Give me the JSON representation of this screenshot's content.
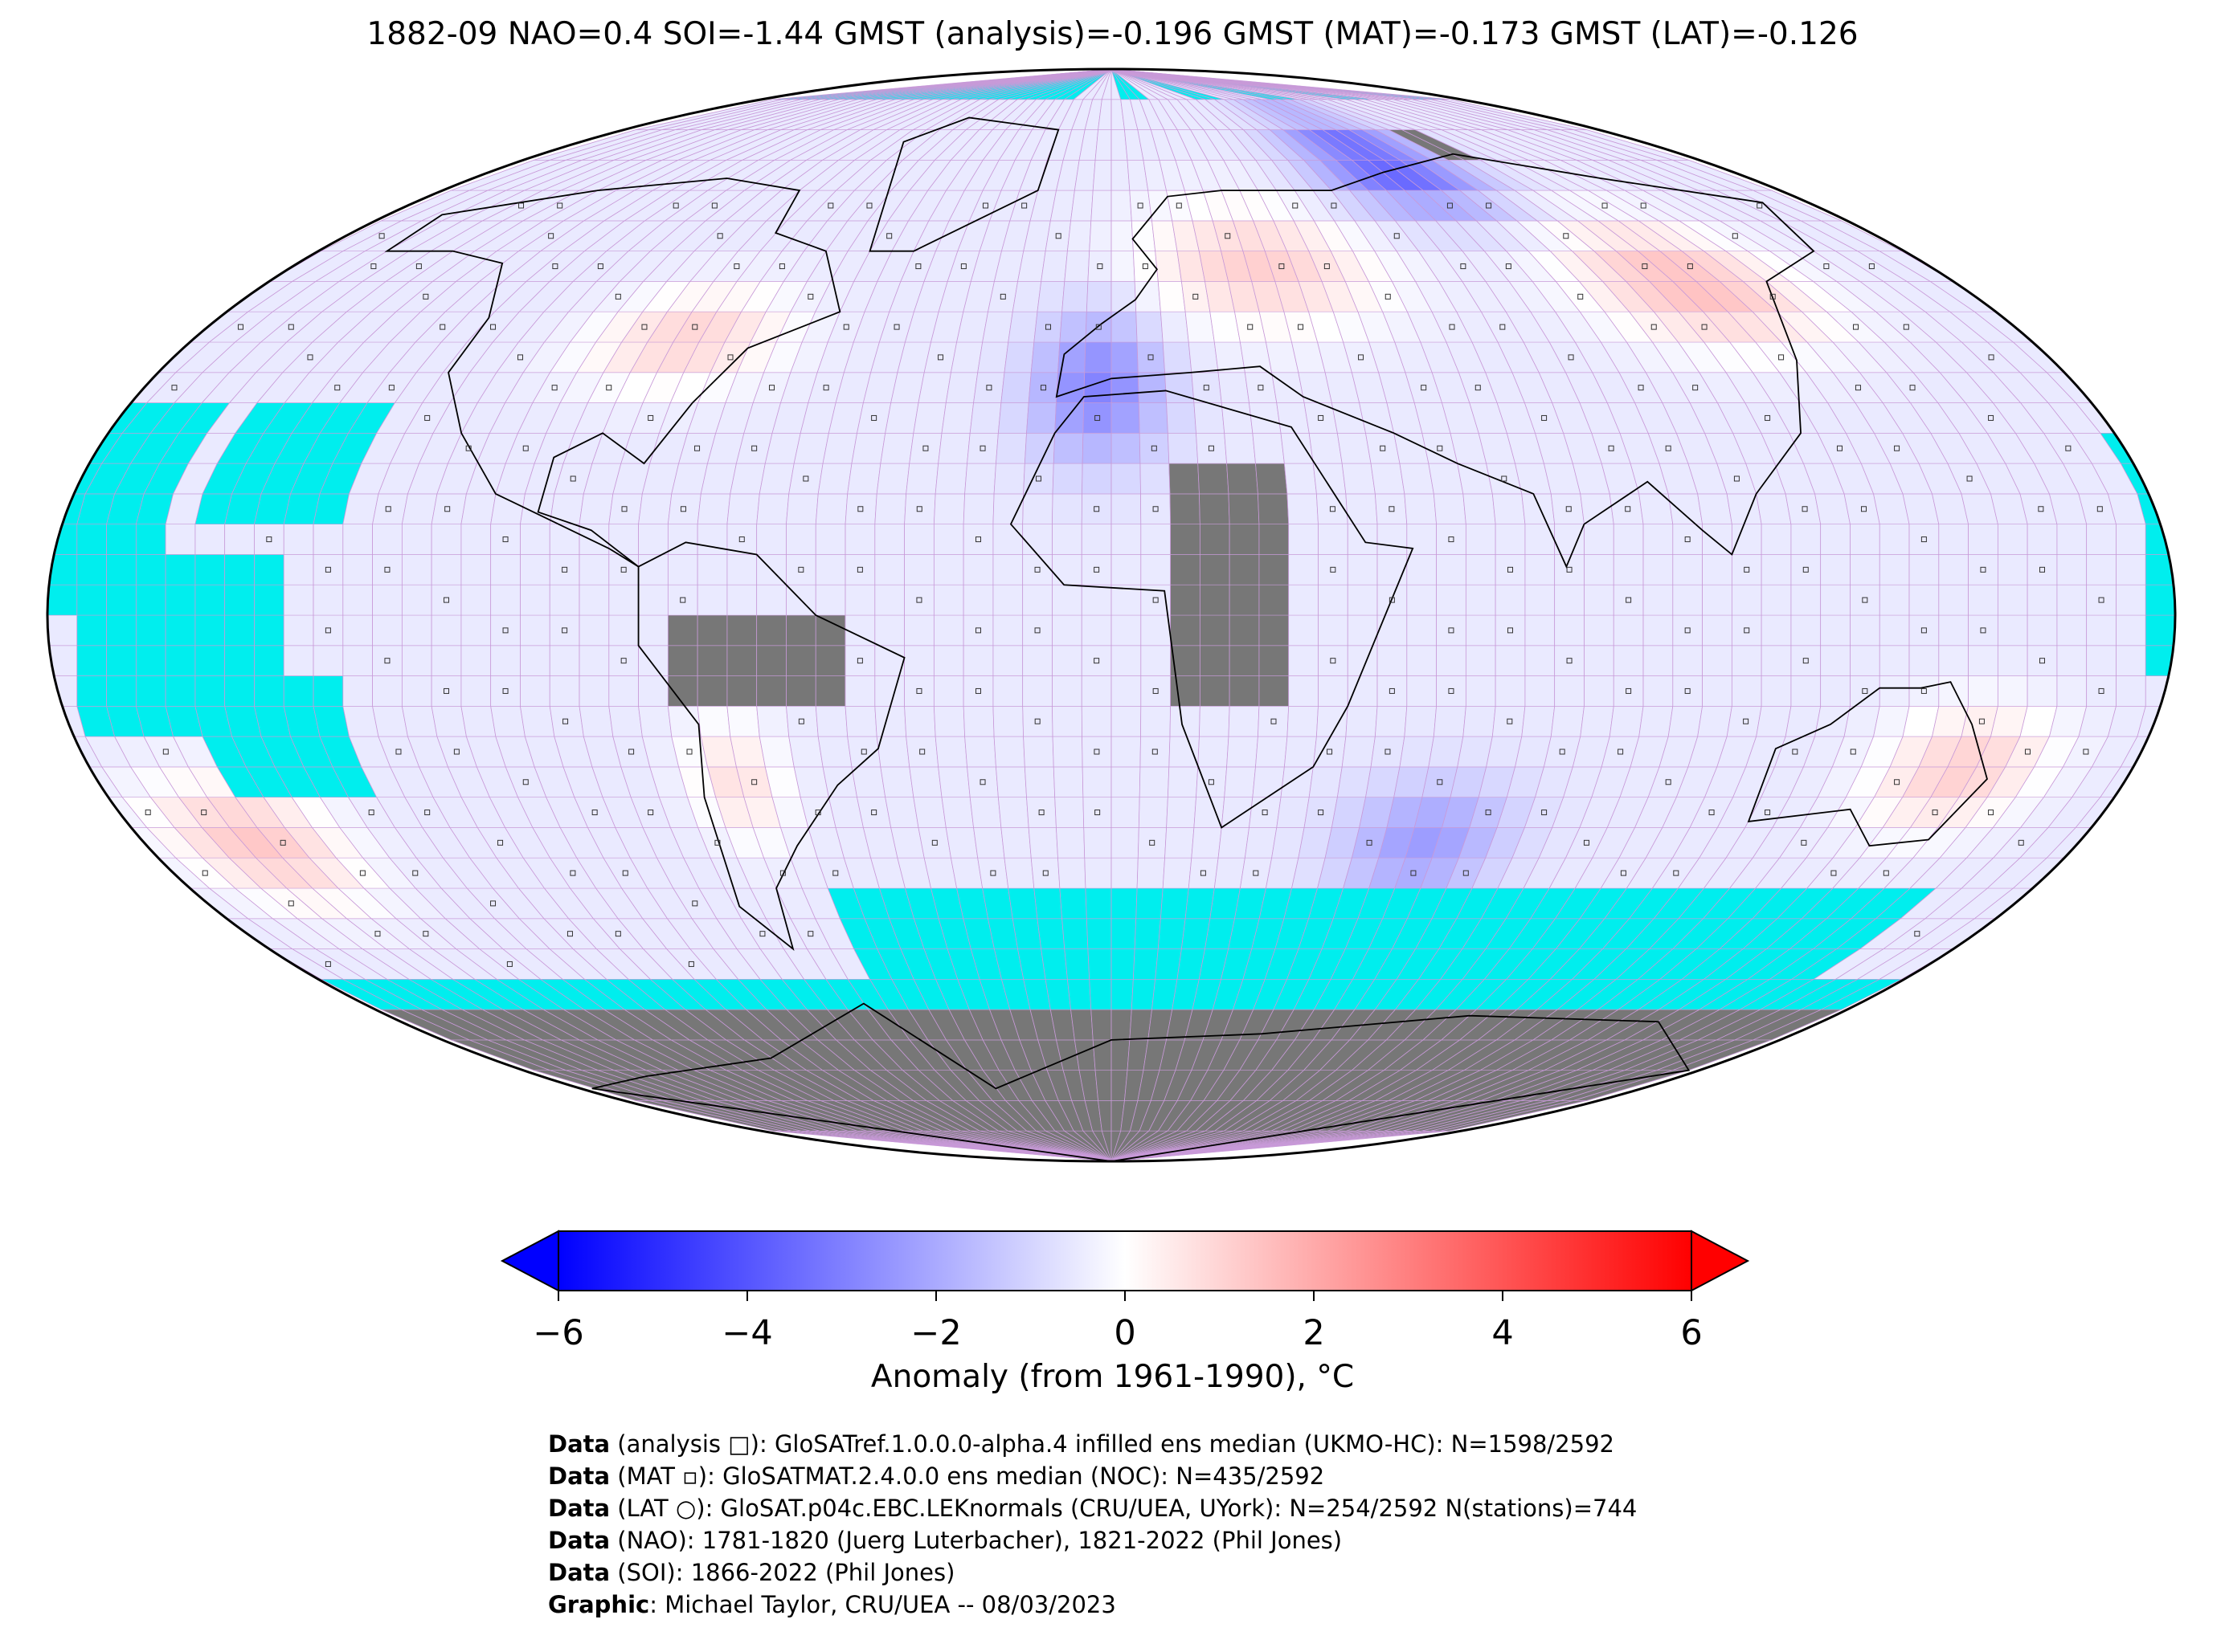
{
  "title": "1882-09 NAO=0.4 SOI=-1.44 GMST (analysis)=-0.196 GMST (MAT)=-0.173 GMST (LAT)=-0.126",
  "colors": {
    "missing": "#00eeee",
    "land_nodata": "#777777",
    "grid": "#c89ad8",
    "cold_end": "#0000ff",
    "warm_end": "#ff0000",
    "neutral": "#ffffff"
  },
  "colorbar": {
    "min": -6,
    "max": 6,
    "ticks": [
      "−6",
      "−4",
      "−2",
      "0",
      "2",
      "4",
      "6"
    ],
    "tick_values": [
      -6,
      -4,
      -2,
      0,
      2,
      4,
      6
    ],
    "label": "Anomaly (from 1961-1990), °C"
  },
  "credits": [
    {
      "bold": "Data",
      "text": " (analysis □): GloSATref.1.0.0.0-alpha.4 infilled ens median (UKMO-HC): N=1598/2592"
    },
    {
      "bold": "Data",
      "text": " (MAT ▫): GloSATMAT.2.4.0.0 ens median (NOC): N=435/2592"
    },
    {
      "bold": "Data",
      "text": " (LAT ○): GloSAT.p04c.EBC.LEKnormals (CRU/UEA, UYork): N=254/2592 N(stations)=744"
    },
    {
      "bold": "Data",
      "text": " (NAO): 1781-1820 (Juerg Luterbacher), 1821-2022 (Phil Jones)"
    },
    {
      "bold": "Data",
      "text": " (SOI): 1866-2022 (Phil Jones)"
    },
    {
      "bold": "Graphic",
      "text": ": Michael Taylor, CRU/UEA -- 08/03/2023"
    }
  ]
}
